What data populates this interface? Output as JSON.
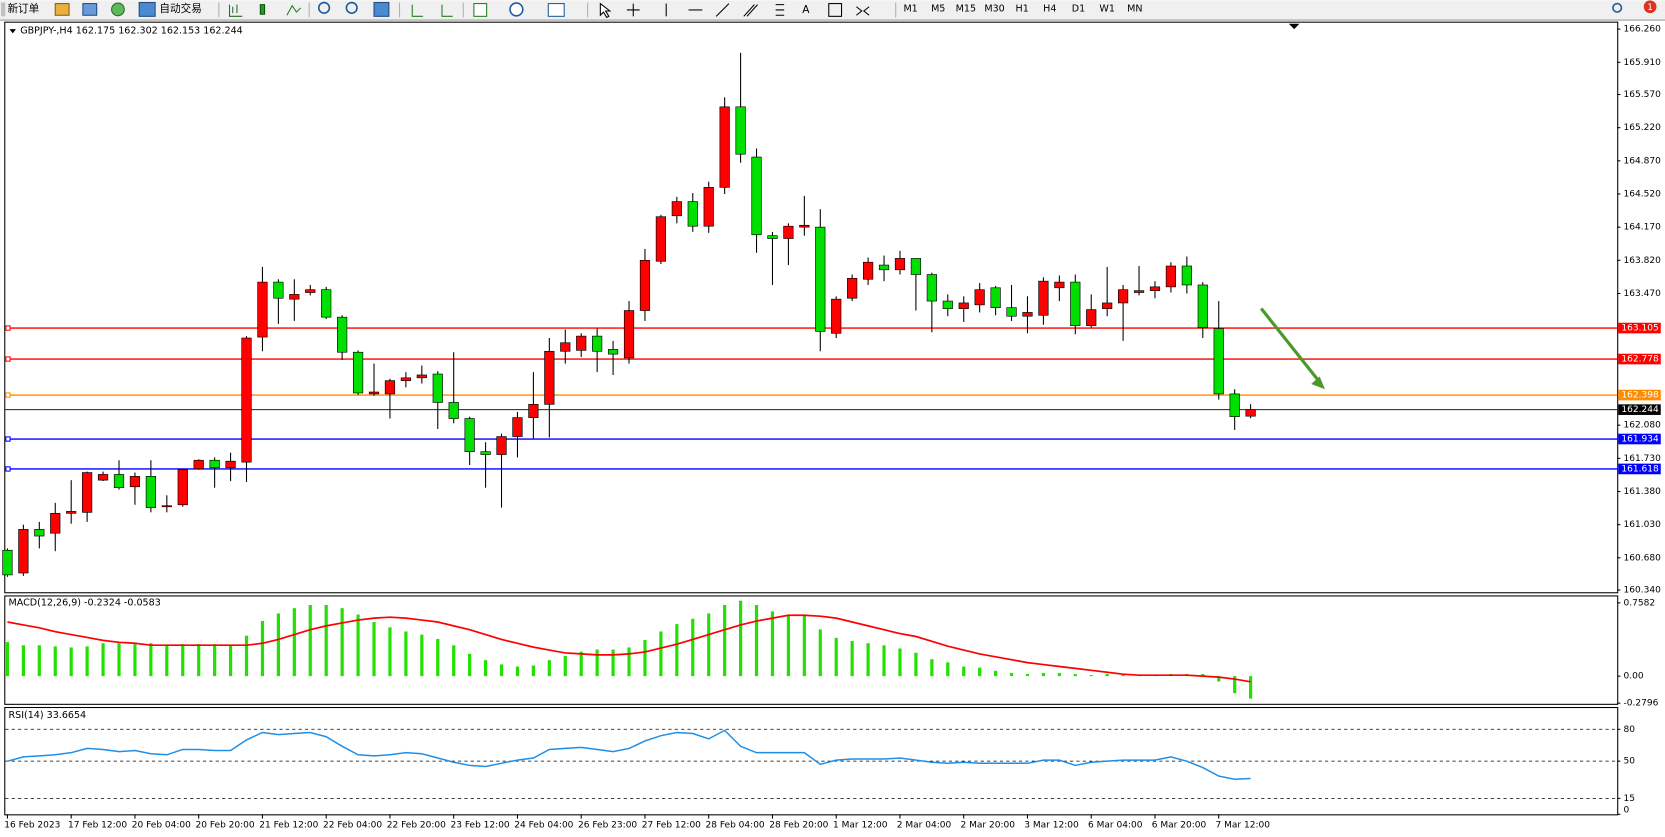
{
  "toolbar": {
    "new_order": "新订单",
    "auto_trade": "自动交易",
    "timeframes": [
      "M1",
      "M5",
      "M15",
      "M30",
      "H1",
      "H4",
      "D1",
      "W1",
      "MN"
    ],
    "badge": "1"
  },
  "chart_data": [
    {
      "type": "candlestick",
      "title": "GBPJPY-,H4  162.175 162.302 162.153 162.244",
      "up_color": "#ff0000",
      "down_color": "#00e000",
      "categories": [
        "16 Feb 2023",
        null,
        null,
        null,
        "17 Feb 12:00",
        null,
        null,
        null,
        "20 Feb 04:00",
        null,
        null,
        null,
        "20 Feb 20:00",
        null,
        null,
        null,
        "21 Feb 12:00",
        null,
        null,
        null,
        "22 Feb 04:00",
        null,
        null,
        null,
        "22 Feb 20:00",
        null,
        null,
        null,
        "23 Feb 12:00",
        null,
        null,
        null,
        "24 Feb 04:00",
        null,
        null,
        null,
        "26 Feb 23:00",
        null,
        null,
        null,
        "27 Feb 12:00",
        null,
        null,
        null,
        "28 Feb 04:00",
        null,
        null,
        null,
        "28 Feb 20:00",
        null,
        null,
        null,
        "1 Mar 12:00",
        null,
        null,
        null,
        "2 Mar 04:00",
        null,
        null,
        null,
        "2 Mar 20:00",
        null,
        null,
        null,
        "3 Mar 12:00",
        null,
        null,
        null,
        "6 Mar 04:00",
        null,
        null,
        null,
        "6 Mar 20:00",
        null,
        null,
        null,
        "7 Mar 12:00",
        null,
        null
      ],
      "open": [
        160.76,
        160.52,
        160.98,
        160.94,
        161.15,
        161.16,
        161.5,
        161.56,
        161.43,
        161.54,
        161.22,
        161.24,
        161.62,
        161.71,
        161.63,
        161.69,
        163.01,
        163.59,
        163.41,
        163.48,
        163.51,
        163.22,
        162.85,
        162.41,
        162.41,
        162.55,
        162.58,
        162.62,
        162.32,
        162.15,
        161.8,
        161.77,
        161.96,
        162.16,
        162.3,
        162.86,
        162.87,
        163.02,
        162.88,
        162.79,
        163.29,
        163.81,
        164.29,
        164.44,
        164.18,
        164.59,
        165.44,
        164.91,
        164.08,
        164.05,
        164.17,
        164.17,
        163.05,
        163.42,
        163.62,
        163.77,
        163.72,
        163.84,
        163.67,
        163.39,
        163.31,
        163.35,
        163.53,
        163.32,
        163.23,
        163.24,
        163.53,
        163.59,
        163.13,
        163.31,
        163.37,
        163.48,
        163.5,
        163.54,
        163.76,
        163.56,
        163.1,
        162.41,
        162.175
      ],
      "high": [
        160.78,
        161.03,
        161.06,
        161.26,
        161.5,
        161.59,
        161.59,
        161.71,
        161.58,
        161.71,
        161.34,
        161.62,
        161.72,
        161.74,
        161.79,
        163.02,
        163.75,
        163.62,
        163.62,
        163.56,
        163.54,
        163.24,
        162.87,
        162.73,
        162.57,
        162.64,
        162.71,
        162.65,
        162.85,
        162.17,
        161.9,
        161.99,
        162.22,
        162.64,
        163.0,
        163.09,
        163.05,
        163.1,
        162.97,
        163.39,
        163.94,
        164.3,
        164.49,
        164.53,
        164.65,
        165.54,
        166.01,
        165.0,
        164.12,
        164.21,
        164.5,
        164.36,
        163.44,
        163.67,
        163.85,
        163.87,
        163.92,
        163.84,
        163.69,
        163.46,
        163.44,
        163.58,
        163.55,
        163.56,
        163.44,
        163.64,
        163.66,
        163.67,
        163.46,
        163.75,
        163.56,
        163.76,
        163.6,
        163.8,
        163.86,
        163.59,
        163.39,
        162.46,
        162.302
      ],
      "low": [
        160.48,
        160.49,
        160.78,
        160.75,
        161.04,
        161.06,
        161.49,
        161.4,
        161.24,
        161.16,
        161.16,
        161.22,
        161.61,
        161.42,
        161.49,
        161.48,
        162.86,
        163.15,
        163.18,
        163.45,
        163.2,
        162.77,
        162.4,
        162.39,
        162.15,
        162.48,
        162.52,
        162.04,
        162.1,
        161.66,
        161.42,
        161.21,
        161.74,
        161.94,
        161.95,
        162.73,
        162.8,
        162.64,
        162.61,
        162.73,
        163.18,
        163.78,
        164.21,
        164.12,
        164.11,
        164.52,
        164.85,
        163.9,
        163.56,
        163.77,
        164.08,
        162.86,
        163.0,
        163.39,
        163.56,
        163.6,
        163.67,
        163.29,
        163.06,
        163.23,
        163.17,
        163.27,
        163.24,
        163.18,
        163.05,
        163.14,
        163.39,
        163.04,
        163.11,
        163.23,
        162.97,
        163.45,
        163.42,
        163.48,
        163.47,
        163.0,
        162.35,
        162.03,
        162.153
      ],
      "close": [
        160.5,
        160.98,
        160.91,
        161.15,
        161.17,
        161.58,
        161.56,
        161.42,
        161.54,
        161.21,
        161.23,
        161.61,
        161.71,
        161.63,
        161.7,
        163.0,
        163.59,
        163.42,
        163.46,
        163.51,
        163.22,
        162.85,
        162.42,
        162.43,
        162.55,
        162.58,
        162.61,
        162.32,
        162.15,
        161.8,
        161.77,
        161.96,
        162.16,
        162.3,
        162.86,
        162.95,
        163.02,
        162.86,
        162.83,
        163.29,
        163.82,
        164.28,
        164.44,
        164.18,
        164.59,
        165.44,
        164.94,
        164.09,
        164.05,
        164.18,
        164.19,
        163.07,
        163.41,
        163.63,
        163.8,
        163.72,
        163.84,
        163.67,
        163.39,
        163.31,
        163.37,
        163.51,
        163.32,
        163.23,
        163.27,
        163.6,
        163.59,
        163.13,
        163.3,
        163.37,
        163.51,
        163.5,
        163.54,
        163.76,
        163.56,
        163.11,
        162.41,
        162.17,
        162.244
      ],
      "levels": [
        {
          "value": 163.105,
          "color": "#ff0000"
        },
        {
          "value": 162.778,
          "color": "#ff0000"
        },
        {
          "value": 162.398,
          "color": "#ff8c00"
        },
        {
          "value": 161.934,
          "color": "#0000ff"
        },
        {
          "value": 161.618,
          "color": "#0000ff"
        }
      ],
      "ylim": [
        160.317,
        166.339
      ],
      "yticks": [
        {
          "value": 166.26,
          "label": "166.260"
        },
        {
          "value": 165.91,
          "label": "165.910"
        },
        {
          "value": 165.57,
          "label": "165.570"
        },
        {
          "value": 165.22,
          "label": "165.220"
        },
        {
          "value": 164.87,
          "label": "164.870"
        },
        {
          "value": 164.52,
          "label": "164.520"
        },
        {
          "value": 164.17,
          "label": "164.170"
        },
        {
          "value": 163.82,
          "label": "163.820"
        },
        {
          "value": 163.47,
          "label": "163.470"
        },
        {
          "value": 162.08,
          "label": "162.080"
        },
        {
          "value": 161.73,
          "label": "161.730"
        },
        {
          "value": 161.38,
          "label": "161.380"
        },
        {
          "value": 161.03,
          "label": "161.030"
        },
        {
          "value": 160.68,
          "label": "160.680"
        },
        {
          "value": 160.34,
          "label": "160.340"
        }
      ]
    },
    {
      "type": "macd",
      "title": "MACD(12,26,9) -0.2324 -0.0583",
      "color": "#22e000",
      "signal_color": "#ff0000",
      "values": [
        0.352,
        0.319,
        0.319,
        0.308,
        0.297,
        0.308,
        0.341,
        0.341,
        0.33,
        0.341,
        0.319,
        0.33,
        0.33,
        0.33,
        0.319,
        0.418,
        0.571,
        0.648,
        0.703,
        0.736,
        0.736,
        0.703,
        0.637,
        0.56,
        0.505,
        0.462,
        0.429,
        0.385,
        0.319,
        0.231,
        0.165,
        0.121,
        0.099,
        0.11,
        0.165,
        0.209,
        0.253,
        0.275,
        0.275,
        0.297,
        0.374,
        0.462,
        0.538,
        0.593,
        0.648,
        0.736,
        0.78,
        0.736,
        0.67,
        0.626,
        0.626,
        0.484,
        0.396,
        0.363,
        0.341,
        0.319,
        0.286,
        0.242,
        0.176,
        0.143,
        0.099,
        0.088,
        0.055,
        0.033,
        0.022,
        0.033,
        0.033,
        0.022,
        0.011,
        0.022,
        0.011,
        0.011,
        0.011,
        0.022,
        0.022,
        0.022,
        -0.055,
        -0.176,
        -0.2324
      ],
      "signal": [
        0.56,
        0.53,
        0.5,
        0.46,
        0.43,
        0.4,
        0.37,
        0.35,
        0.34,
        0.32,
        0.32,
        0.32,
        0.32,
        0.32,
        0.32,
        0.32,
        0.34,
        0.38,
        0.43,
        0.48,
        0.52,
        0.55,
        0.58,
        0.6,
        0.61,
        0.6,
        0.58,
        0.56,
        0.52,
        0.48,
        0.43,
        0.38,
        0.34,
        0.3,
        0.27,
        0.24,
        0.23,
        0.22,
        0.22,
        0.23,
        0.25,
        0.29,
        0.33,
        0.38,
        0.43,
        0.48,
        0.53,
        0.57,
        0.6,
        0.63,
        0.63,
        0.62,
        0.6,
        0.56,
        0.52,
        0.48,
        0.44,
        0.41,
        0.36,
        0.31,
        0.27,
        0.23,
        0.2,
        0.17,
        0.14,
        0.12,
        0.1,
        0.08,
        0.06,
        0.04,
        0.02,
        0.01,
        0.01,
        0.01,
        0.01,
        0.0,
        -0.01,
        -0.03,
        -0.0583
      ],
      "ylim": [
        -0.297,
        0.835
      ],
      "yticks": [
        0.7582,
        {
          "value": 0,
          "label": "0.00"
        },
        -0.2796
      ]
    },
    {
      "type": "line",
      "title": "RSI(14) 33.6654",
      "color": "#1e8fe8",
      "values": [
        50,
        54,
        55,
        56,
        58,
        62,
        61,
        59,
        60,
        57,
        56,
        61,
        61,
        60,
        60,
        70,
        77,
        75,
        76,
        77,
        73,
        64,
        56,
        55,
        56,
        58,
        57,
        53,
        49,
        46,
        45,
        48,
        51,
        53,
        61,
        62,
        63,
        61,
        59,
        62,
        69,
        74,
        77,
        76,
        71,
        79,
        64,
        58,
        58,
        58,
        58,
        47,
        51,
        52,
        52,
        52,
        53,
        51,
        49,
        48,
        49,
        48,
        48,
        48,
        48,
        51,
        51,
        46,
        49,
        50,
        51,
        51,
        51,
        54,
        50,
        44,
        36,
        33,
        33.6654
      ],
      "ylim": [
        0,
        100
      ],
      "yticks": [
        80,
        50,
        15,
        0
      ]
    }
  ]
}
